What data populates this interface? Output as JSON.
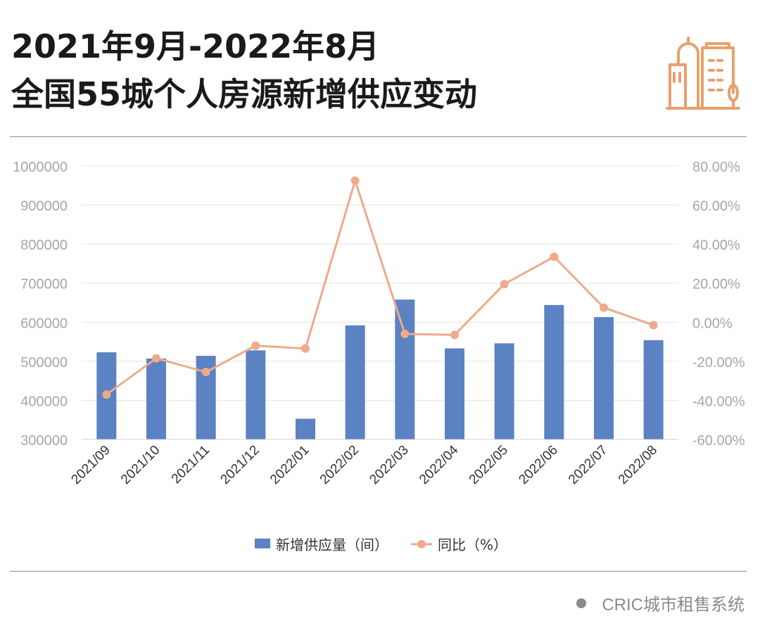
{
  "header": {
    "title_line1": "2021年9月-2022年8月",
    "title_line2": "全国55城个人房源新增供应变动"
  },
  "footer": {
    "source": "CRIC城市租售系统"
  },
  "colors": {
    "bar": "#5b82c2",
    "line": "#eeaa8a",
    "grid": "#e3e3e3",
    "axis_text": "#a6a6a6",
    "logo": "#e8a06b"
  },
  "logo_icon": "city-buildings-icon",
  "chart_data": {
    "type": "bar",
    "categories": [
      "2021/09",
      "2021/10",
      "2021/11",
      "2021/12",
      "2022/01",
      "2022/02",
      "2022/03",
      "2022/04",
      "2022/05",
      "2022/06",
      "2022/07",
      "2022/08"
    ],
    "series": [
      {
        "name": "新增供应量（间）",
        "type": "bar",
        "axis": "left",
        "values": [
          523000,
          507000,
          514000,
          528000,
          353000,
          592000,
          658000,
          533000,
          546000,
          644000,
          613000,
          554000
        ]
      },
      {
        "name": "同比（%）",
        "type": "line",
        "axis": "right",
        "values": [
          -37.0,
          -18.5,
          -25.5,
          -12.0,
          -13.5,
          72.5,
          -6.0,
          -6.5,
          19.5,
          33.5,
          7.5,
          -1.5
        ]
      }
    ],
    "y_left": {
      "min": 300000,
      "max": 1000000,
      "ticks": [
        "300000",
        "400000",
        "500000",
        "600000",
        "700000",
        "800000",
        "900000",
        "1000000"
      ]
    },
    "y_right": {
      "min": -60,
      "max": 80,
      "ticks": [
        "-60.00%",
        "-40.00%",
        "-20.00%",
        "0.00%",
        "20.00%",
        "40.00%",
        "60.00%",
        "80.00%"
      ]
    },
    "grid": true,
    "legend": "bottom"
  }
}
